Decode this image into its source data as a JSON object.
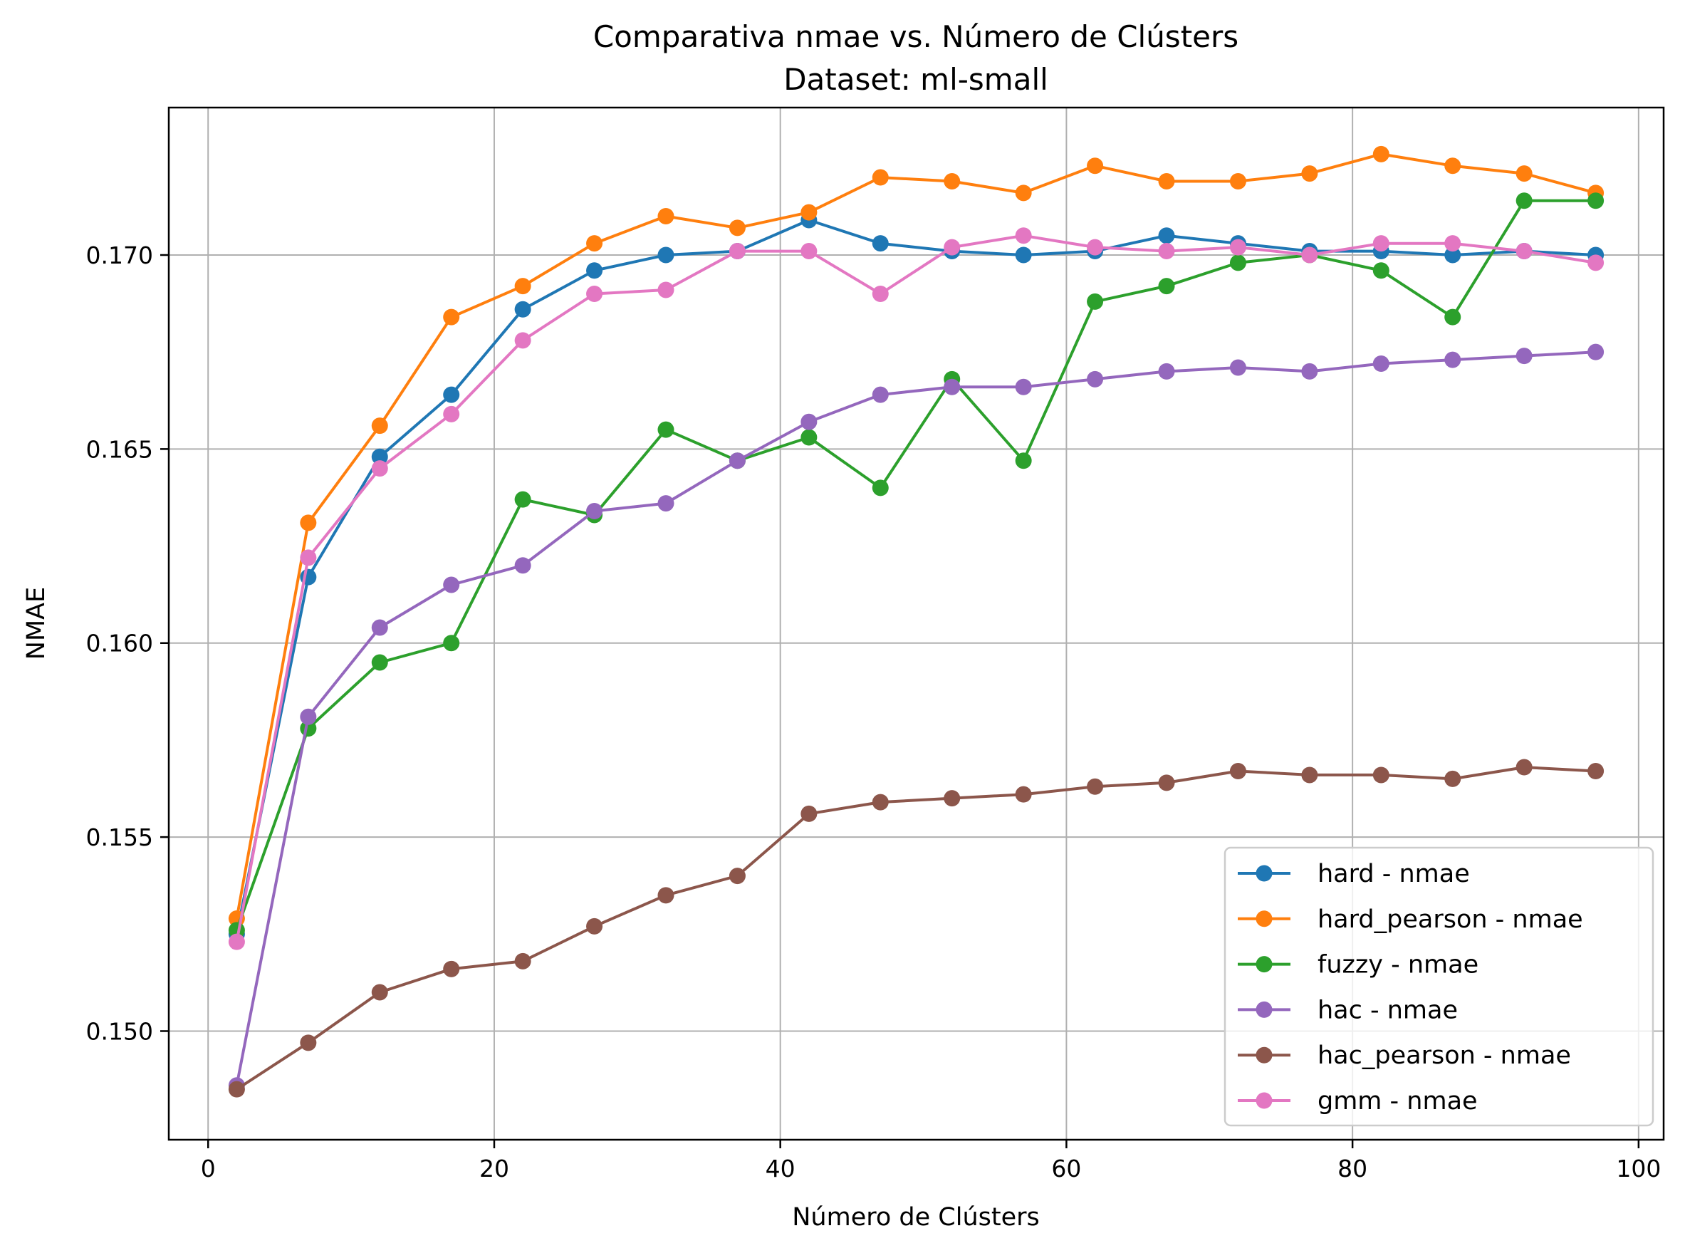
{
  "chart_data": {
    "type": "line",
    "title": "Comparativa nmae vs. Número de Clústers",
    "subtitle": "Dataset: ml-small",
    "xlabel": "Número de Clústers",
    "ylabel": "NMAE",
    "xlim": [
      -2.75,
      101.75
    ],
    "ylim": [
      0.1472,
      0.1738
    ],
    "xticks": [
      0,
      20,
      40,
      60,
      80,
      100
    ],
    "xtick_labels": [
      "0",
      "20",
      "40",
      "60",
      "80",
      "100"
    ],
    "yticks": [
      0.15,
      0.155,
      0.16,
      0.165,
      0.17
    ],
    "ytick_labels": [
      "0.150",
      "0.155",
      "0.160",
      "0.165",
      "0.170"
    ],
    "grid": true,
    "legend_position": "lower-right",
    "x": [
      2,
      7,
      12,
      17,
      22,
      27,
      32,
      37,
      42,
      47,
      52,
      57,
      62,
      67,
      72,
      77,
      82,
      87,
      92,
      97
    ],
    "series": [
      {
        "name": "hard - nmae",
        "color": "#1f77b4",
        "values": [
          0.1525,
          0.1617,
          0.1648,
          0.1664,
          0.1686,
          0.1696,
          0.17,
          0.1701,
          0.1709,
          0.1703,
          0.1701,
          0.17,
          0.1701,
          0.1705,
          0.1703,
          0.1701,
          0.1701,
          0.17,
          0.1701,
          0.17
        ]
      },
      {
        "name": "hard_pearson - nmae",
        "color": "#ff7f0e",
        "values": [
          0.1529,
          0.1631,
          0.1656,
          0.1684,
          0.1692,
          0.1703,
          0.171,
          0.1707,
          0.1711,
          0.172,
          0.1719,
          0.1716,
          0.1723,
          0.1719,
          0.1719,
          0.1721,
          0.1726,
          0.1723,
          0.1721,
          0.1716
        ]
      },
      {
        "name": "fuzzy - nmae",
        "color": "#2ca02c",
        "values": [
          0.1526,
          0.1578,
          0.1595,
          0.16,
          0.1637,
          0.1633,
          0.1655,
          0.1647,
          0.1653,
          0.164,
          0.1668,
          0.1647,
          0.1688,
          0.1692,
          0.1698,
          0.17,
          0.1696,
          0.1684,
          0.1714,
          0.1714
        ]
      },
      {
        "name": "hac - nmae",
        "color": "#9467bd",
        "values": [
          0.1486,
          0.1581,
          0.1604,
          0.1615,
          0.162,
          0.1634,
          0.1636,
          0.1647,
          0.1657,
          0.1664,
          0.1666,
          0.1666,
          0.1668,
          0.167,
          0.1671,
          0.167,
          0.1672,
          0.1673,
          0.1674,
          0.1675
        ]
      },
      {
        "name": "hac_pearson - nmae",
        "color": "#8c564b",
        "values": [
          0.1485,
          0.1497,
          0.151,
          0.1516,
          0.1518,
          0.1527,
          0.1535,
          0.154,
          0.1556,
          0.1559,
          0.156,
          0.1561,
          0.1563,
          0.1564,
          0.1567,
          0.1566,
          0.1566,
          0.1565,
          0.1568,
          0.1567
        ]
      },
      {
        "name": "gmm - nmae",
        "color": "#e377c2",
        "values": [
          0.1523,
          0.1622,
          0.1645,
          0.1659,
          0.1678,
          0.169,
          0.1691,
          0.1701,
          0.1701,
          0.169,
          0.1702,
          0.1705,
          0.1702,
          0.1701,
          0.1702,
          0.17,
          0.1703,
          0.1703,
          0.1701,
          0.1698
        ]
      }
    ]
  }
}
